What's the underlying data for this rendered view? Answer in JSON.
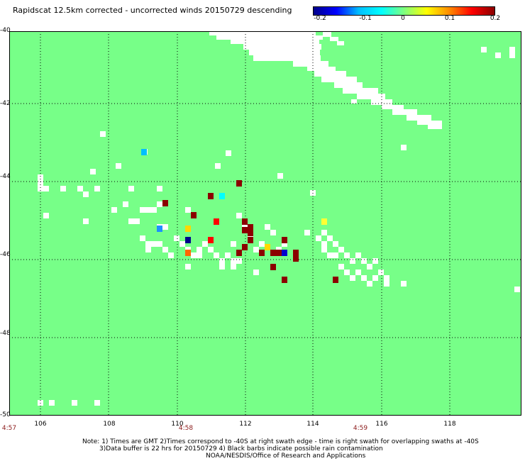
{
  "title": "Rapidscat 12.5km corrected - uncorrected winds 20150729 descending",
  "colorbar": {
    "ticks": [
      "-0.2",
      "-0.1",
      "0",
      "0.1",
      "0.2"
    ],
    "range": [
      -0.2,
      0.2
    ],
    "colors": [
      "#00008b",
      "#0000ff",
      "#00bfff",
      "#00ffff",
      "#7fff7f",
      "#ffff00",
      "#ff8c00",
      "#ff0000",
      "#8b0000"
    ]
  },
  "colors": {
    "land_or_background": "#77ff88",
    "no_data": "#ffffff",
    "grid": "#000000"
  },
  "axes": {
    "lat_labels": [
      "-40",
      "-42",
      "-44",
      "-46",
      "-48",
      "-50"
    ],
    "lon_labels": [
      "106",
      "108",
      "110",
      "112",
      "114",
      "116",
      "118"
    ],
    "time_labels": [
      "4:57",
      "4:58",
      "4:59"
    ]
  },
  "notes": {
    "line1": "Note: 1) Times are GMT 2)Times correspond to -40S at right swath edge - time is right swath for overlapping swaths at -40S",
    "line2": "3)Data buffer is 22 hrs for 20150729 4) Black barbs indicate possible rain contamination",
    "line3": "NOAA/NESDIS/Office of Research and Applications"
  }
}
